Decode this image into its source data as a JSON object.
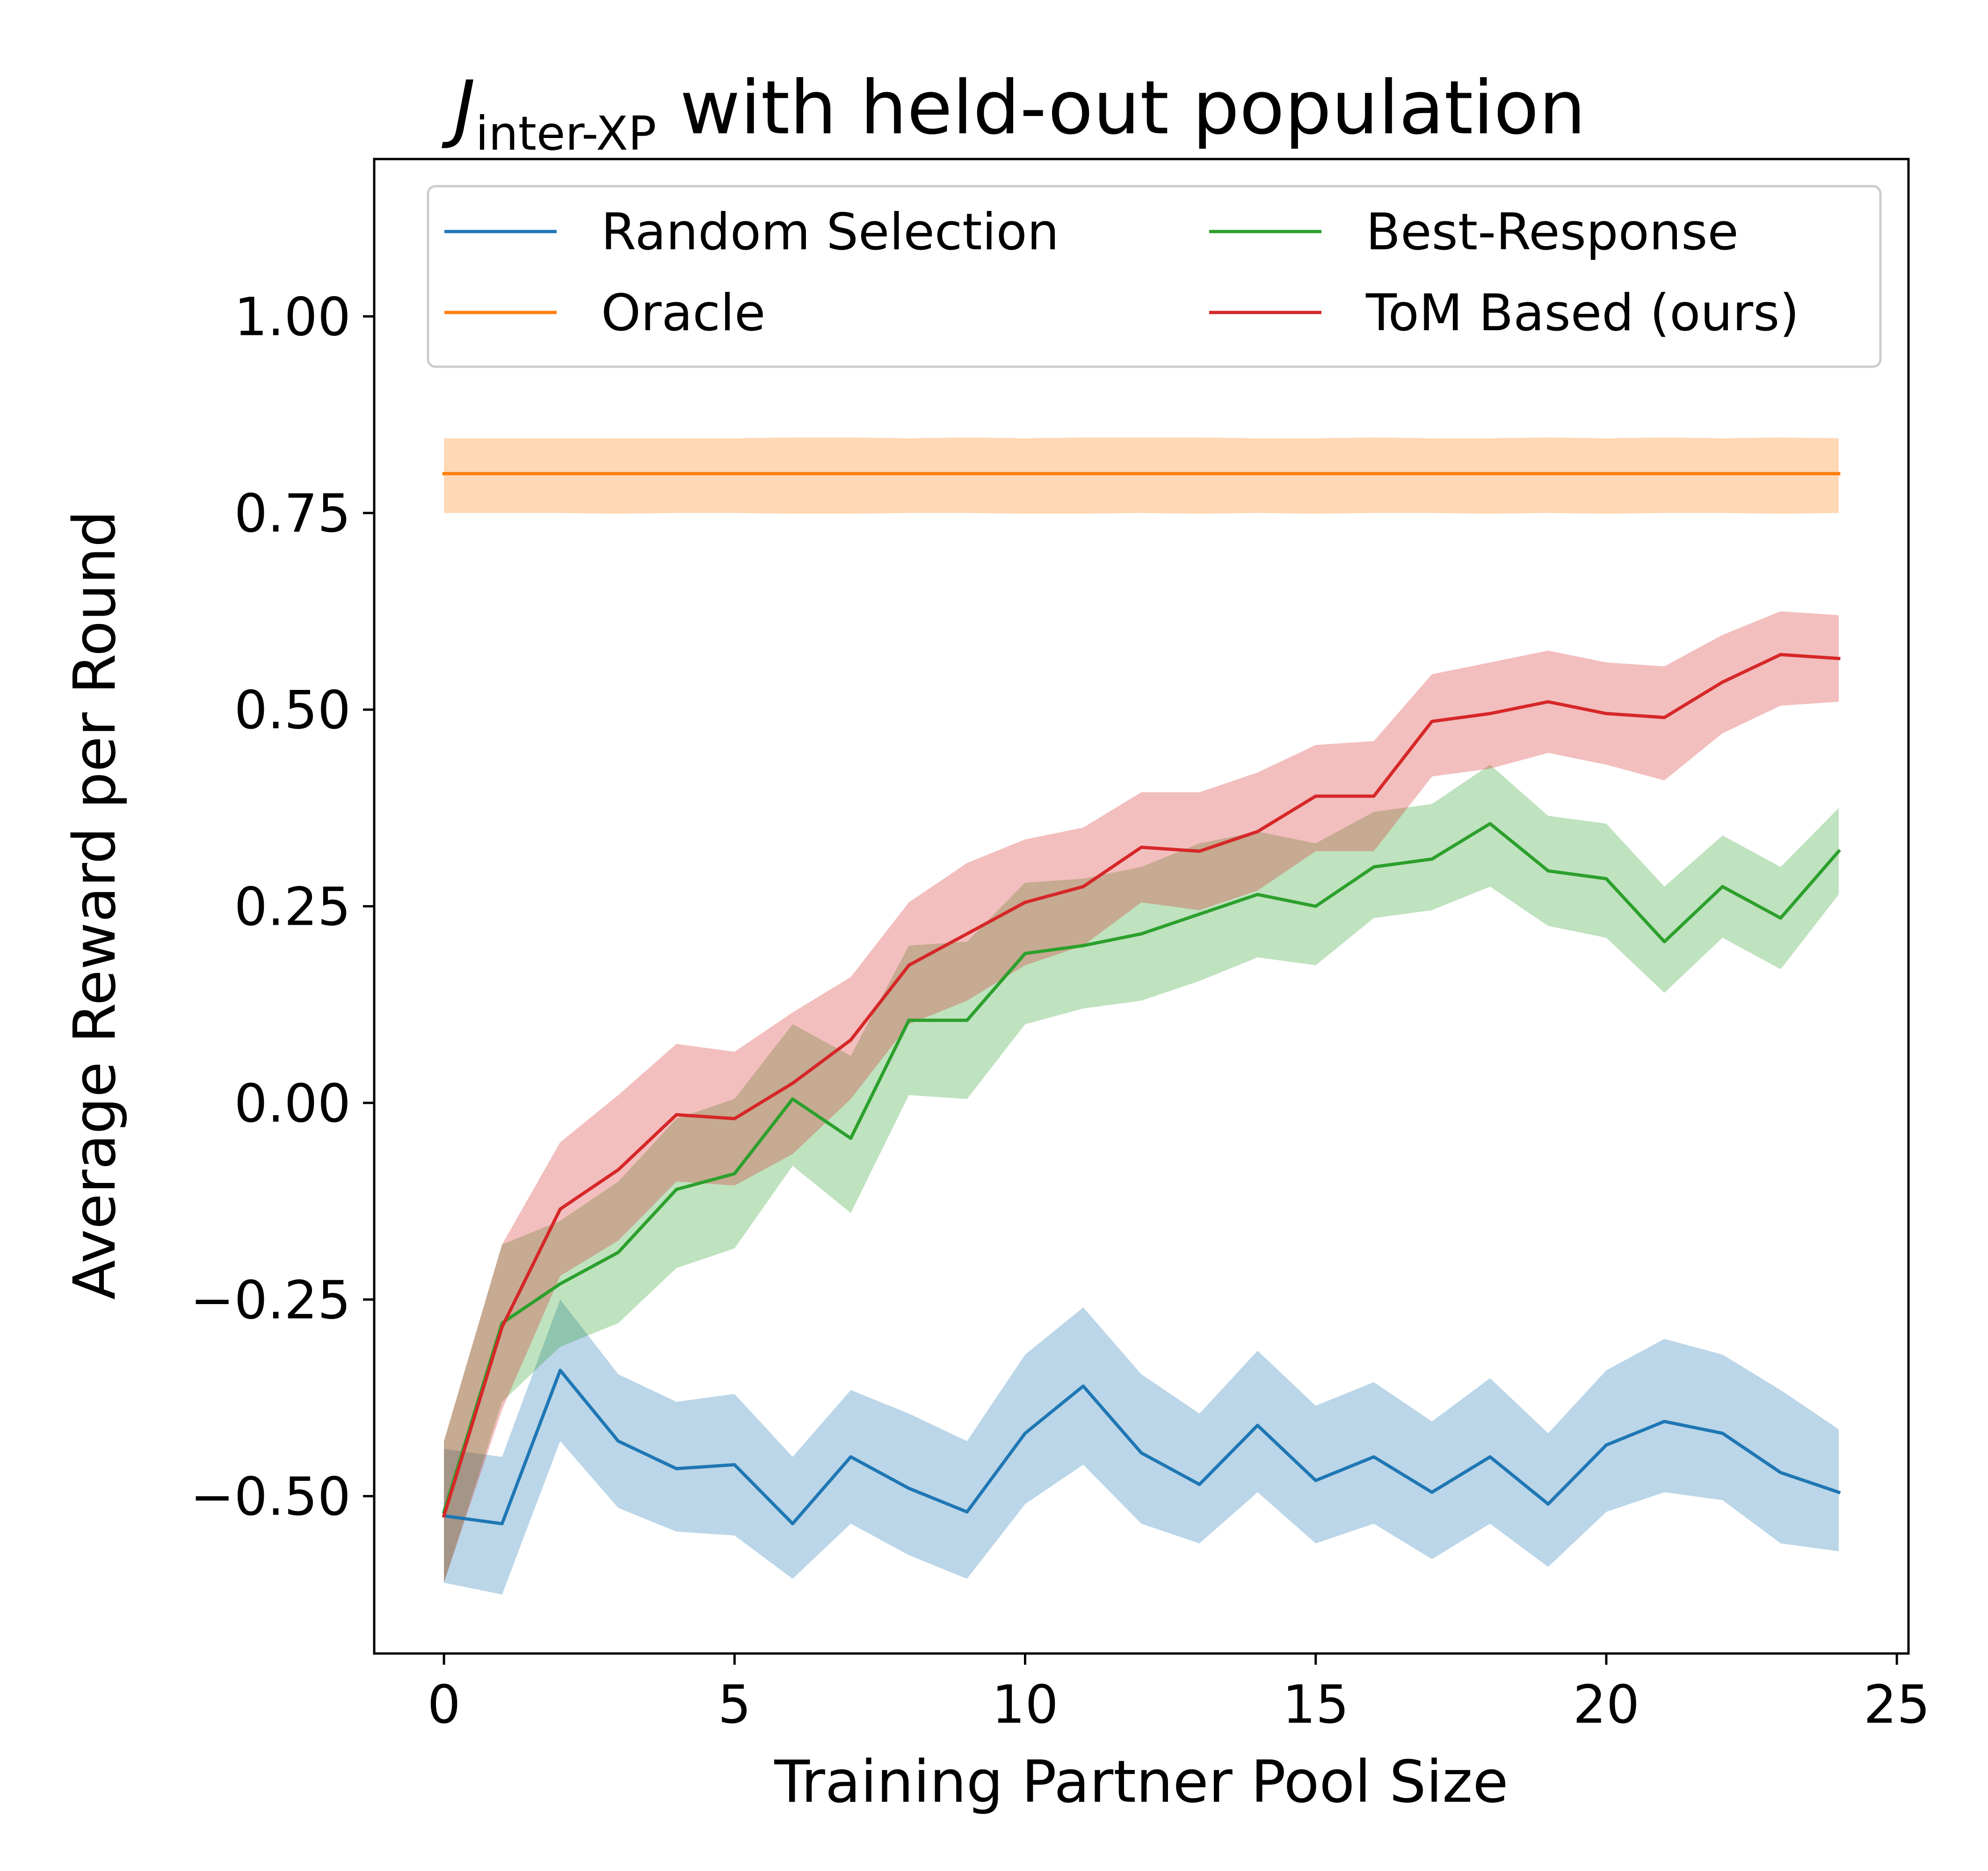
{
  "chart_data": {
    "type": "line",
    "title_main": "J",
    "title_sub": "inter-XP",
    "title_rest": " with held-out population",
    "xlabel": "Training Partner Pool Size",
    "ylabel": "Average Reward per Round",
    "xlim": [
      -1.2,
      25.2
    ],
    "ylim": [
      -0.7,
      1.2
    ],
    "xticks": [
      0,
      5,
      10,
      15,
      20,
      25
    ],
    "xtick_labels": [
      "0",
      "5",
      "10",
      "15",
      "20",
      "25"
    ],
    "yticks": [
      -0.5,
      -0.25,
      0,
      0.25,
      0.5,
      0.75,
      1.0
    ],
    "ytick_labels": [
      "−0.50",
      "−0.25",
      "0.00",
      "0.25",
      "0.50",
      "0.75",
      "1.00"
    ],
    "legend_position": "top",
    "x": [
      0,
      1,
      2,
      3,
      4,
      5,
      6,
      7,
      8,
      9,
      10,
      11,
      12,
      13,
      14,
      15,
      16,
      17,
      18,
      19,
      20,
      21,
      22,
      23,
      24
    ],
    "series": [
      {
        "name": "Random Selection",
        "color": "#1f77b4",
        "values": [
          -0.525,
          -0.535,
          -0.34,
          -0.43,
          -0.465,
          -0.46,
          -0.535,
          -0.45,
          -0.49,
          -0.52,
          -0.42,
          -0.36,
          -0.445,
          -0.485,
          -0.41,
          -0.48,
          -0.45,
          -0.495,
          -0.45,
          -0.51,
          -0.435,
          -0.405,
          -0.42,
          -0.47,
          -0.495
        ],
        "upper": [
          -0.44,
          -0.45,
          -0.25,
          -0.345,
          -0.38,
          -0.37,
          -0.45,
          -0.365,
          -0.395,
          -0.43,
          -0.32,
          -0.26,
          -0.345,
          -0.395,
          -0.315,
          -0.385,
          -0.355,
          -0.405,
          -0.35,
          -0.42,
          -0.34,
          -0.3,
          -0.32,
          -0.365,
          -0.415
        ],
        "lower": [
          -0.61,
          -0.625,
          -0.43,
          -0.515,
          -0.545,
          -0.55,
          -0.605,
          -0.535,
          -0.575,
          -0.605,
          -0.51,
          -0.46,
          -0.535,
          -0.56,
          -0.495,
          -0.56,
          -0.535,
          -0.58,
          -0.535,
          -0.59,
          -0.52,
          -0.495,
          -0.505,
          -0.56,
          -0.57
        ]
      },
      {
        "name": "Oracle",
        "color": "#ff7f0e",
        "values": [
          0.8,
          0.8,
          0.8,
          0.8,
          0.8,
          0.8,
          0.8,
          0.8,
          0.8,
          0.8,
          0.8,
          0.8,
          0.8,
          0.8,
          0.8,
          0.8,
          0.8,
          0.8,
          0.8,
          0.8,
          0.8,
          0.8,
          0.8,
          0.8,
          0.8
        ],
        "upper": [
          0.845,
          0.845,
          0.845,
          0.845,
          0.845,
          0.845,
          0.846,
          0.846,
          0.845,
          0.846,
          0.845,
          0.846,
          0.846,
          0.846,
          0.845,
          0.845,
          0.846,
          0.845,
          0.845,
          0.846,
          0.845,
          0.846,
          0.845,
          0.846,
          0.845
        ],
        "lower": [
          0.75,
          0.75,
          0.75,
          0.749,
          0.75,
          0.75,
          0.749,
          0.749,
          0.75,
          0.75,
          0.749,
          0.749,
          0.75,
          0.749,
          0.75,
          0.749,
          0.75,
          0.75,
          0.749,
          0.75,
          0.749,
          0.75,
          0.75,
          0.749,
          0.75
        ]
      },
      {
        "name": "Best-Response",
        "color": "#2ca02c",
        "values": [
          -0.52,
          -0.28,
          -0.23,
          -0.19,
          -0.11,
          -0.09,
          0.005,
          -0.045,
          0.105,
          0.105,
          0.19,
          0.2,
          0.215,
          0.24,
          0.265,
          0.25,
          0.3,
          0.31,
          0.355,
          0.295,
          0.285,
          0.205,
          0.275,
          0.235,
          0.32
        ],
        "upper": [
          -0.43,
          -0.18,
          -0.15,
          -0.1,
          -0.02,
          0.005,
          0.1,
          0.06,
          0.2,
          0.205,
          0.28,
          0.285,
          0.3,
          0.33,
          0.345,
          0.33,
          0.37,
          0.38,
          0.43,
          0.365,
          0.355,
          0.275,
          0.34,
          0.3,
          0.375
        ],
        "lower": [
          -0.61,
          -0.38,
          -0.31,
          -0.28,
          -0.21,
          -0.185,
          -0.08,
          -0.14,
          0.01,
          0.005,
          0.1,
          0.12,
          0.13,
          0.155,
          0.185,
          0.175,
          0.235,
          0.245,
          0.275,
          0.225,
          0.21,
          0.14,
          0.21,
          0.17,
          0.265
        ]
      },
      {
        "name": "ToM Based (ours)",
        "color": "#d62728",
        "values": [
          -0.525,
          -0.285,
          -0.135,
          -0.085,
          -0.015,
          -0.02,
          0.025,
          0.08,
          0.175,
          0.215,
          0.255,
          0.275,
          0.325,
          0.32,
          0.345,
          0.39,
          0.39,
          0.485,
          0.495,
          0.51,
          0.495,
          0.49,
          0.535,
          0.57,
          0.565
        ],
        "upper": [
          -0.43,
          -0.18,
          -0.05,
          0.01,
          0.075,
          0.065,
          0.115,
          0.16,
          0.255,
          0.305,
          0.335,
          0.35,
          0.395,
          0.395,
          0.42,
          0.455,
          0.46,
          0.545,
          0.56,
          0.575,
          0.56,
          0.555,
          0.595,
          0.625,
          0.62
        ],
        "lower": [
          -0.61,
          -0.39,
          -0.22,
          -0.175,
          -0.1,
          -0.105,
          -0.065,
          0.005,
          0.1,
          0.13,
          0.175,
          0.2,
          0.255,
          0.245,
          0.27,
          0.32,
          0.32,
          0.415,
          0.425,
          0.445,
          0.43,
          0.41,
          0.47,
          0.505,
          0.51
        ]
      }
    ]
  }
}
